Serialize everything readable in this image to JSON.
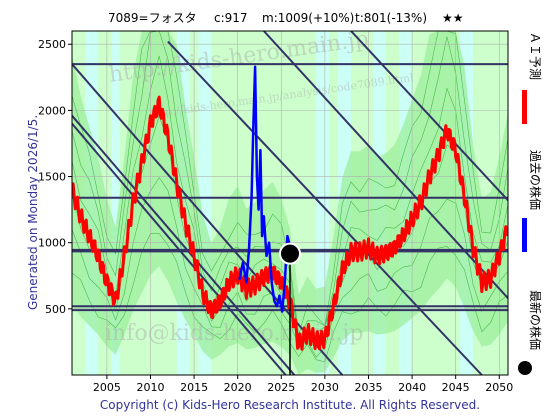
{
  "header": {
    "code": "7089=フォスタ",
    "c": "c:917",
    "m": "m:1009(+10%)",
    "t": "t:801(-13%)",
    "stars": "★★"
  },
  "side_left": "Generated on Monday 2026/1/5.",
  "legend": {
    "forecast": "ＡＩ予測",
    "past": "過去の株価",
    "latest": "最新の株価"
  },
  "footer": "Copyright (c) Kids-Hero Research Institute. All Rights Reserved.",
  "watermarks": [
    "http://kids-hero.main.jp",
    "http://kids-hero.main.jp/analysis/code7089.html",
    "info@kids-hero.main.jp"
  ],
  "colors": {
    "forecast": "#ff0000",
    "past": "#0000ff",
    "latest": "#000000",
    "band_light": "#ccffcc",
    "band_mid": "#99ee99",
    "band_cyan": "#ccffff",
    "grid": "#b0b0b0",
    "trend": "#333366",
    "frame": "#000000"
  },
  "chart_data": {
    "type": "line",
    "xlim": [
      2001,
      2051
    ],
    "ylim": [
      0,
      2600
    ],
    "x_ticks": [
      2005,
      2010,
      2015,
      2020,
      2025,
      2030,
      2035,
      2040,
      2045,
      2050
    ],
    "y_ticks": [
      500,
      1000,
      1500,
      2000,
      2500
    ],
    "grid": true,
    "horizontal_levels": [
      2350,
      1340,
      940,
      520,
      490
    ],
    "trend_lines": [
      {
        "from": [
          2001,
          2350
        ],
        "to": [
          2032,
          0
        ]
      },
      {
        "from": [
          2001,
          1960
        ],
        "to": [
          2026.5,
          0
        ]
      },
      {
        "from": [
          2001,
          1900
        ],
        "to": [
          2025.5,
          0
        ]
      },
      {
        "from": [
          2012,
          2520
        ],
        "to": [
          2048,
          0
        ]
      },
      {
        "from": [
          2023,
          2600
        ],
        "to": [
          2051,
          580
        ]
      },
      {
        "from": [
          2033,
          2600
        ],
        "to": [
          2051,
          1320
        ]
      }
    ],
    "series": [
      {
        "name": "ＡＩ予測",
        "x": [
          2001,
          2002,
          2003,
          2004,
          2005,
          2006,
          2007,
          2008,
          2009,
          2010,
          2011,
          2012,
          2013,
          2014,
          2015,
          2016,
          2017,
          2018,
          2019,
          2020,
          2021,
          2022,
          2023,
          2024,
          2025,
          2026,
          2027,
          2028,
          2029,
          2030,
          2031,
          2032,
          2033,
          2034,
          2035,
          2036,
          2037,
          2038,
          2039,
          2040,
          2041,
          2042,
          2043,
          2044,
          2045,
          2046,
          2047,
          2048,
          2049,
          2050,
          2051
        ],
        "values": [
          1400,
          1200,
          1050,
          900,
          700,
          560,
          900,
          1300,
          1600,
          1900,
          2050,
          1800,
          1450,
          1150,
          900,
          620,
          480,
          560,
          700,
          760,
          650,
          680,
          740,
          780,
          700,
          550,
          230,
          320,
          260,
          270,
          520,
          800,
          930,
          930,
          960,
          900,
          920,
          960,
          1060,
          1180,
          1300,
          1500,
          1660,
          1850,
          1700,
          1350,
          960,
          700,
          730,
          900,
          1120
        ]
      },
      {
        "name": "過去の株価",
        "x": [
          2020.2,
          2020.6,
          2021.0,
          2021.3,
          2021.6,
          2021.8,
          2022.0,
          2022.2,
          2022.4,
          2022.6,
          2022.8,
          2023.0,
          2023.3,
          2023.6,
          2023.9,
          2024.2,
          2024.5,
          2024.8,
          2025.1,
          2025.4,
          2025.7,
          2025.9,
          2026.0
        ],
        "values": [
          720,
          850,
          700,
          950,
          1350,
          1900,
          2330,
          1500,
          1250,
          1700,
          1050,
          1200,
          900,
          1000,
          700,
          560,
          520,
          600,
          480,
          700,
          1050,
          1000,
          917
        ]
      }
    ],
    "latest_point": {
      "x": 2026.0,
      "y": 917
    }
  }
}
